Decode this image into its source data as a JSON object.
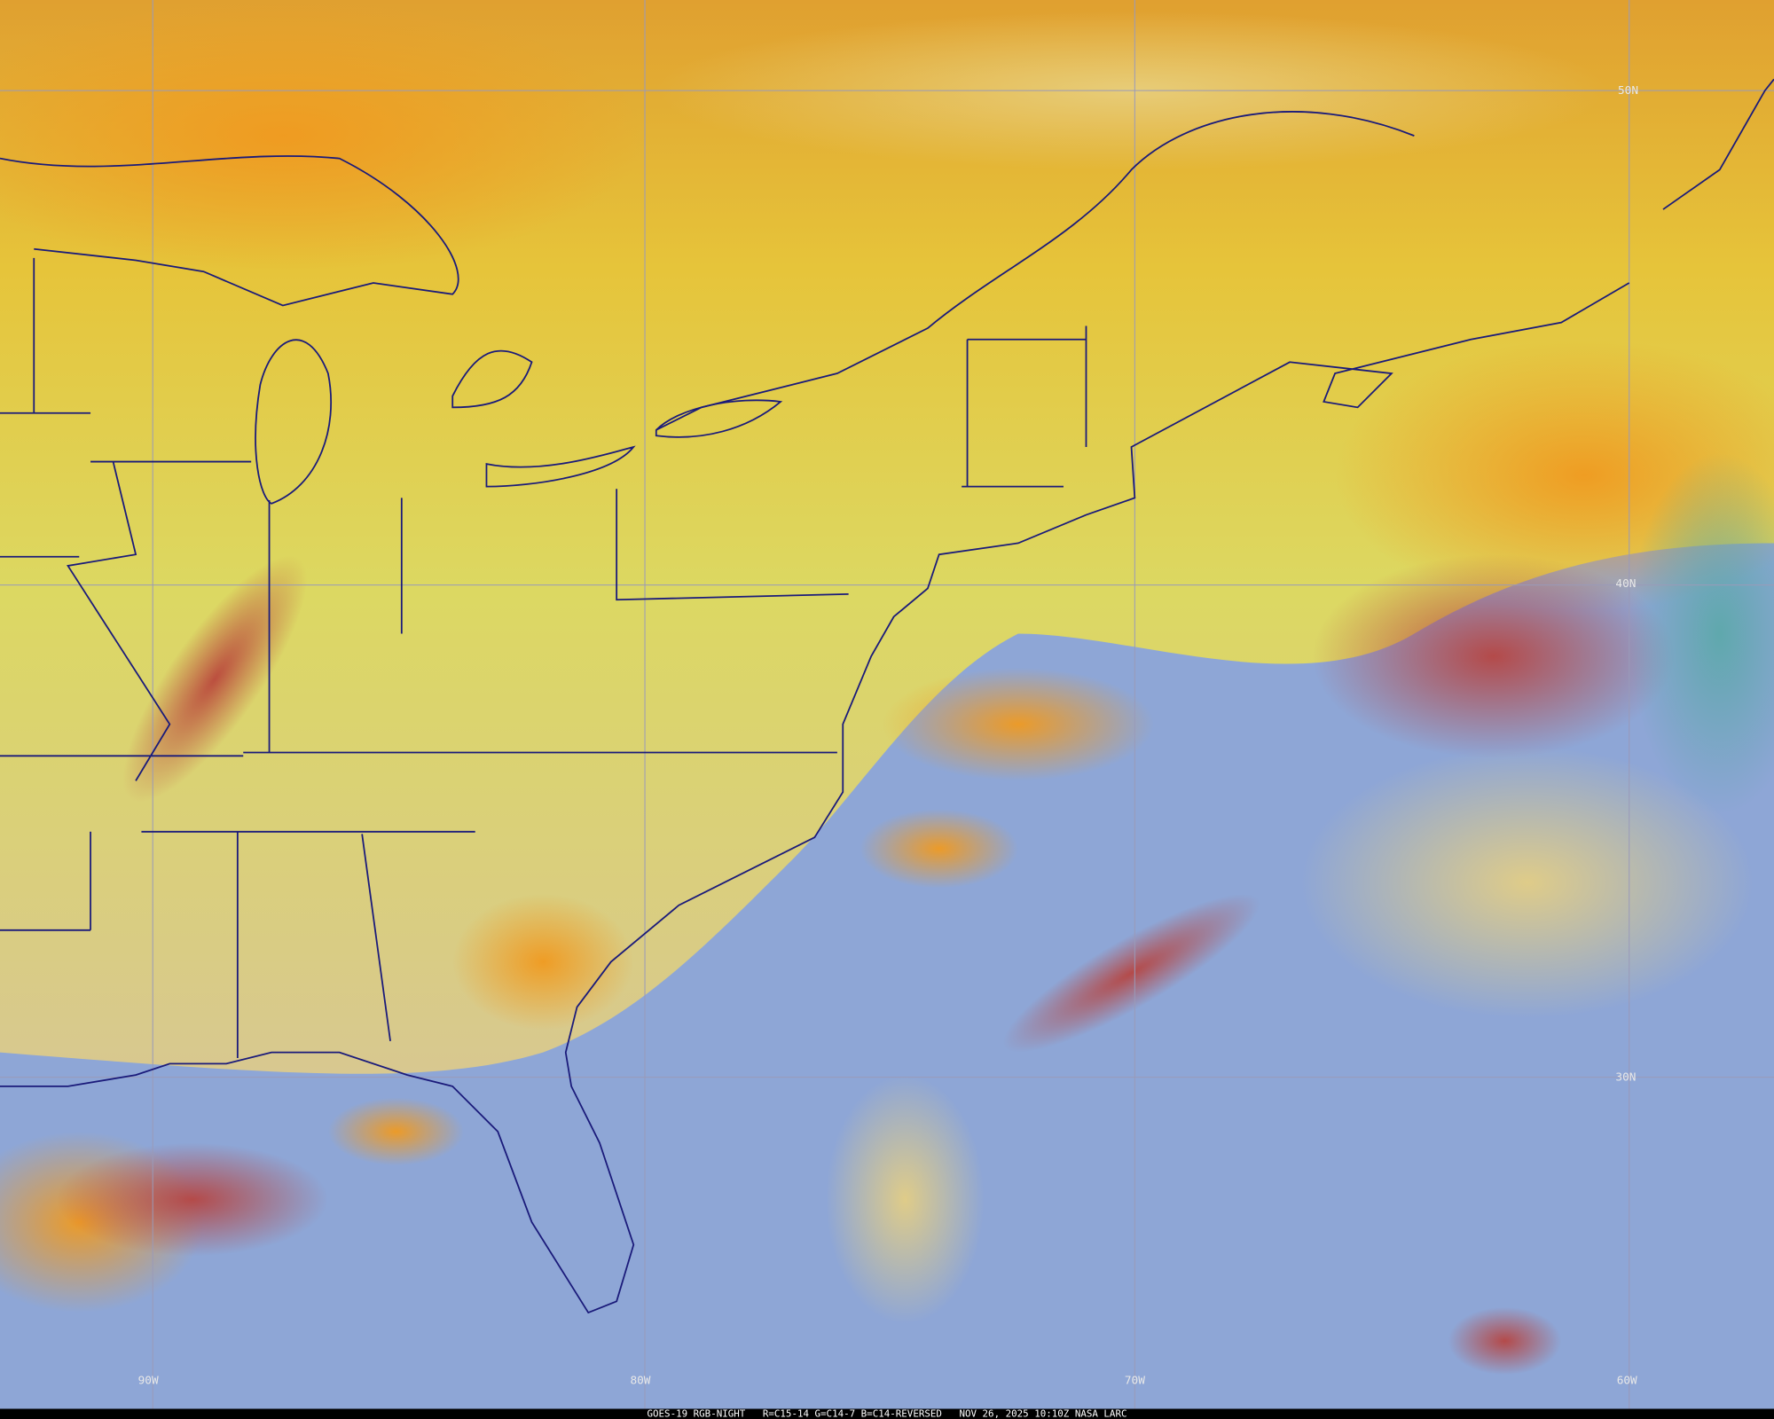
{
  "map": {
    "latitude_labels": [
      "50N",
      "40N",
      "30N"
    ],
    "longitude_labels": [
      "90W",
      "80W",
      "70W",
      "60W"
    ],
    "footer": "GOES-19 RGB-NIGHT   R=C15-14 G=C14-7 B=C14-REVERSED   NOV 26, 2025 10:10Z NASA LARC"
  }
}
